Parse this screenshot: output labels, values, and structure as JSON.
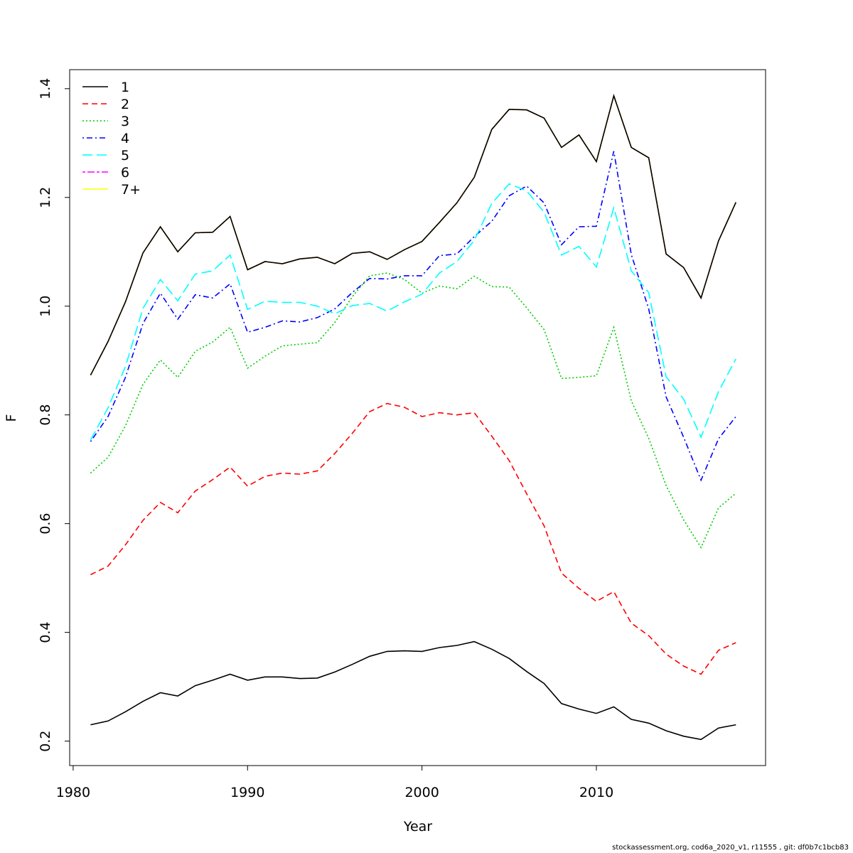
{
  "chart_data": {
    "type": "line",
    "xlabel": "Year",
    "ylabel": "F",
    "xlim": [
      1979.8,
      2019.7
    ],
    "ylim": [
      0.155,
      1.435
    ],
    "xticks": [
      1980,
      1990,
      2000,
      2010
    ],
    "yticks": [
      0.2,
      0.4,
      0.6,
      0.8,
      1.0,
      1.2,
      1.4
    ],
    "ytick_labels": [
      "0.2",
      "0.4",
      "0.6",
      "0.8",
      "1.0",
      "1.2",
      "1.4"
    ],
    "legend_position": "top-left",
    "grid": false,
    "x": [
      1981,
      1982,
      1983,
      1984,
      1985,
      1986,
      1987,
      1988,
      1989,
      1990,
      1991,
      1992,
      1993,
      1994,
      1995,
      1996,
      1997,
      1998,
      1999,
      2000,
      2001,
      2002,
      2003,
      2004,
      2005,
      2006,
      2007,
      2008,
      2009,
      2010,
      2011,
      2012,
      2013,
      2014,
      2015,
      2016,
      2017,
      2018
    ],
    "series": [
      {
        "name": "1",
        "color": "#000000",
        "dash": "solid",
        "values": [
          0.23,
          0.237,
          0.254,
          0.273,
          0.289,
          0.283,
          0.302,
          0.312,
          0.323,
          0.312,
          0.318,
          0.318,
          0.315,
          0.316,
          0.327,
          0.341,
          0.356,
          0.365,
          0.366,
          0.365,
          0.372,
          0.376,
          0.383,
          0.369,
          0.352,
          0.328,
          0.306,
          0.269,
          0.259,
          0.251,
          0.263,
          0.24,
          0.233,
          0.219,
          0.209,
          0.203,
          0.224,
          0.23
        ]
      },
      {
        "name": "2",
        "color": "#ff0000",
        "dash": "dashed",
        "values": [
          0.506,
          0.522,
          0.561,
          0.606,
          0.639,
          0.62,
          0.66,
          0.681,
          0.704,
          0.669,
          0.687,
          0.693,
          0.691,
          0.697,
          0.729,
          0.766,
          0.806,
          0.821,
          0.814,
          0.797,
          0.804,
          0.8,
          0.804,
          0.761,
          0.716,
          0.655,
          0.596,
          0.509,
          0.481,
          0.457,
          0.475,
          0.417,
          0.394,
          0.36,
          0.338,
          0.323,
          0.367,
          0.381
        ]
      },
      {
        "name": "3",
        "color": "#00cd00",
        "dash": "dotted",
        "values": [
          0.693,
          0.722,
          0.78,
          0.856,
          0.901,
          0.869,
          0.917,
          0.934,
          0.961,
          0.886,
          0.908,
          0.927,
          0.93,
          0.933,
          0.97,
          1.017,
          1.056,
          1.061,
          1.049,
          1.024,
          1.037,
          1.032,
          1.055,
          1.036,
          1.035,
          0.997,
          0.957,
          0.867,
          0.869,
          0.872,
          0.961,
          0.826,
          0.757,
          0.67,
          0.607,
          0.556,
          0.629,
          0.656
        ]
      },
      {
        "name": "4",
        "color": "#0000ff",
        "dash": "dotdash",
        "values": [
          0.751,
          0.797,
          0.869,
          0.968,
          1.024,
          0.976,
          1.021,
          1.015,
          1.041,
          0.952,
          0.961,
          0.973,
          0.971,
          0.979,
          0.995,
          1.025,
          1.051,
          1.05,
          1.056,
          1.056,
          1.093,
          1.096,
          1.128,
          1.156,
          1.203,
          1.221,
          1.19,
          1.113,
          1.146,
          1.147,
          1.285,
          1.095,
          0.995,
          0.833,
          0.759,
          0.68,
          0.756,
          0.797
        ]
      },
      {
        "name": "5",
        "color": "#00ffff",
        "dash": "longdash",
        "values": [
          0.754,
          0.813,
          0.889,
          0.996,
          1.049,
          1.01,
          1.059,
          1.065,
          1.094,
          0.994,
          1.009,
          1.007,
          1.007,
          1.0,
          0.986,
          1.001,
          1.005,
          0.991,
          1.008,
          1.022,
          1.061,
          1.082,
          1.121,
          1.189,
          1.225,
          1.212,
          1.173,
          1.094,
          1.11,
          1.072,
          1.181,
          1.065,
          1.025,
          0.87,
          0.829,
          0.759,
          0.843,
          0.903
        ]
      },
      {
        "name": "6",
        "color": "#ff00ff",
        "dash": "twodash",
        "values": [
          0.873,
          0.935,
          1.008,
          1.098,
          1.146,
          1.1,
          1.135,
          1.136,
          1.165,
          1.067,
          1.082,
          1.078,
          1.087,
          1.09,
          1.078,
          1.097,
          1.1,
          1.086,
          1.104,
          1.119,
          1.154,
          1.19,
          1.237,
          1.325,
          1.362,
          1.361,
          1.346,
          1.292,
          1.315,
          1.266,
          1.387,
          1.292,
          1.273,
          1.096,
          1.071,
          1.015,
          1.12,
          1.191
        ]
      },
      {
        "name": "7+",
        "color": "#ffff00",
        "dash": "solid",
        "values": [
          0.873,
          0.935,
          1.008,
          1.098,
          1.146,
          1.1,
          1.135,
          1.136,
          1.165,
          1.067,
          1.082,
          1.078,
          1.087,
          1.09,
          1.078,
          1.097,
          1.1,
          1.086,
          1.104,
          1.119,
          1.154,
          1.19,
          1.237,
          1.325,
          1.362,
          1.361,
          1.346,
          1.292,
          1.315,
          1.266,
          1.387,
          1.292,
          1.273,
          1.096,
          1.071,
          1.015,
          1.12,
          1.191
        ]
      },
      {
        "name": "",
        "color": "#000000",
        "dash": "solid",
        "values": [
          0.873,
          0.935,
          1.008,
          1.098,
          1.146,
          1.1,
          1.135,
          1.136,
          1.165,
          1.067,
          1.082,
          1.078,
          1.087,
          1.09,
          1.078,
          1.097,
          1.1,
          1.086,
          1.104,
          1.119,
          1.154,
          1.19,
          1.237,
          1.325,
          1.362,
          1.361,
          1.346,
          1.292,
          1.315,
          1.266,
          1.387,
          1.292,
          1.273,
          1.096,
          1.071,
          1.015,
          1.12,
          1.191
        ]
      }
    ],
    "legend": [
      {
        "label": "1",
        "color": "#000000",
        "dash": "solid"
      },
      {
        "label": "2",
        "color": "#ff0000",
        "dash": "dashed"
      },
      {
        "label": "3",
        "color": "#00cd00",
        "dash": "dotted"
      },
      {
        "label": "4",
        "color": "#0000ff",
        "dash": "dotdash"
      },
      {
        "label": "5",
        "color": "#00ffff",
        "dash": "longdash"
      },
      {
        "label": "6",
        "color": "#ff00ff",
        "dash": "twodash"
      },
      {
        "label": "7+",
        "color": "#ffff00",
        "dash": "solid"
      }
    ]
  },
  "footer": "stockassessment.org, cod6a_2020_v1, r11555 , git: df0b7c1bcb83"
}
